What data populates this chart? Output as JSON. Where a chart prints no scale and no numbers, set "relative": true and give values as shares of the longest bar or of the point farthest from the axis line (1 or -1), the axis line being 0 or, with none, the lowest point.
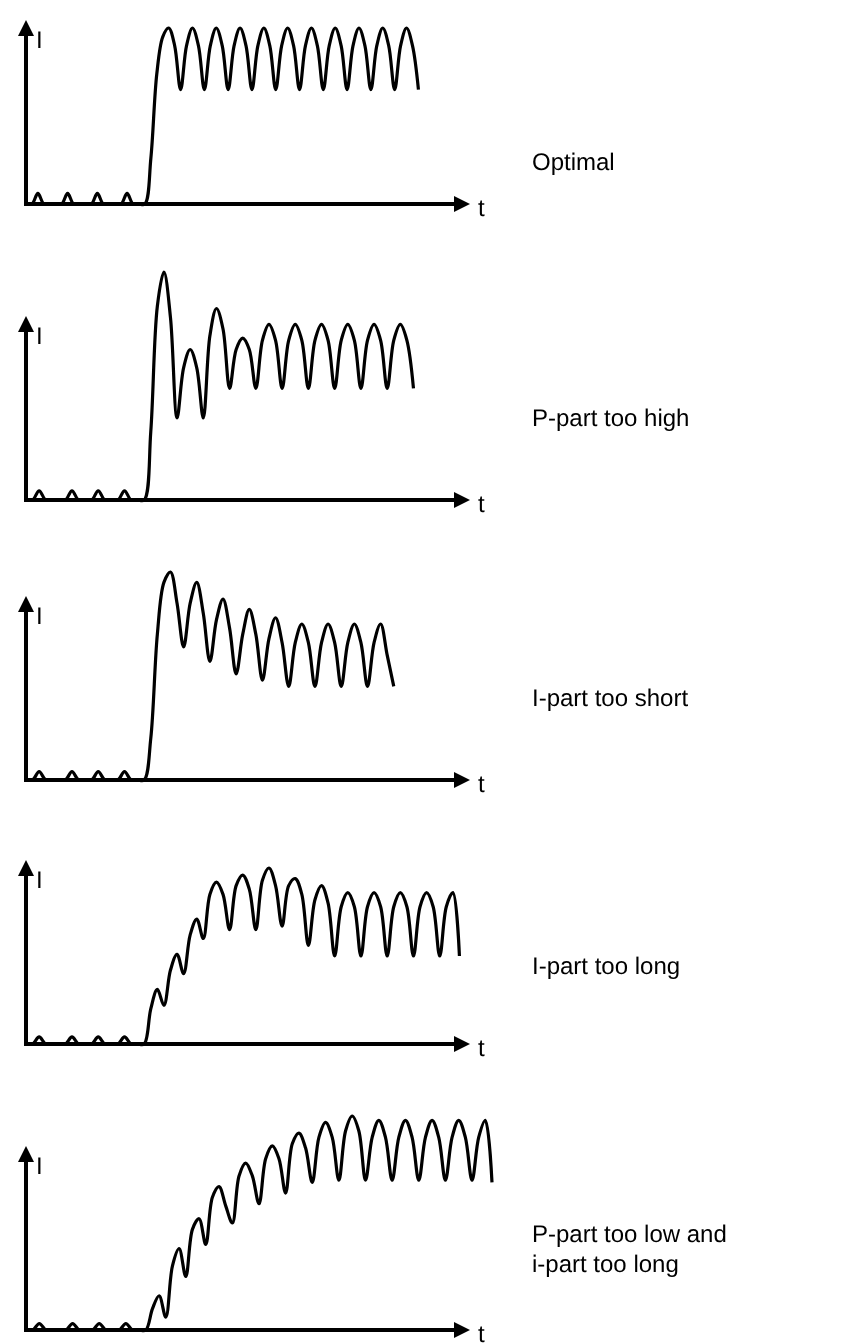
{
  "chart_data": [
    {
      "type": "line",
      "annotations": [
        "Optimal"
      ],
      "xlabel": "t",
      "ylabel": "I",
      "relative": true,
      "categories": [
        null,
        null,
        null,
        null,
        null,
        null,
        null,
        null,
        null,
        null,
        null,
        null,
        null,
        null,
        null,
        null,
        null,
        null,
        null,
        null,
        null,
        null,
        null,
        null,
        null,
        null,
        null,
        null,
        null,
        null,
        null,
        null,
        null,
        null,
        null,
        null,
        null,
        null,
        null,
        null,
        null,
        null,
        null,
        null,
        null,
        null,
        null,
        null,
        null,
        null,
        null,
        null,
        null,
        null,
        null,
        null,
        null,
        null,
        null,
        null,
        null,
        null,
        null,
        null,
        null,
        null,
        null,
        null,
        null,
        null,
        null,
        null,
        null,
        null,
        null
      ],
      "series": [
        {
          "color": "#000000",
          "values": [
            0,
            0,
            0.06,
            0,
            0,
            0,
            0,
            0.06,
            0,
            0,
            0,
            0,
            0.06,
            0,
            0,
            0,
            0,
            0.06,
            0,
            0,
            0,
            0.26,
            0.74,
            0.95,
            1,
            0.9,
            0.65,
            0.9,
            1,
            0.9,
            0.65,
            0.9,
            1,
            0.9,
            0.65,
            0.9,
            1,
            0.9,
            0.65,
            0.9,
            1,
            0.9,
            0.65,
            0.9,
            1,
            0.9,
            0.65,
            0.9,
            1,
            0.9,
            0.65,
            0.9,
            1,
            0.9,
            0.65,
            0.9,
            1,
            0.9,
            0.65,
            0.9,
            1,
            0.9,
            0.65,
            0.9,
            1,
            0.9,
            0.65,
            null,
            null,
            null,
            null,
            null,
            null,
            null,
            null
          ]
        }
      ]
    },
    {
      "type": "line",
      "annotations": [
        "P-part too high"
      ],
      "xlabel": "t",
      "ylabel": "I",
      "relative": true,
      "categories": [
        null,
        null,
        null,
        null,
        null,
        null,
        null,
        null,
        null,
        null,
        null,
        null,
        null,
        null,
        null,
        null,
        null,
        null,
        null,
        null,
        null,
        null,
        null,
        null,
        null,
        null,
        null,
        null,
        null,
        null,
        null,
        null,
        null,
        null,
        null,
        null,
        null,
        null,
        null,
        null,
        null,
        null,
        null,
        null,
        null,
        null,
        null,
        null,
        null,
        null,
        null,
        null,
        null,
        null,
        null,
        null,
        null,
        null,
        null,
        null,
        null,
        null,
        null,
        null,
        null,
        null,
        null,
        null
      ],
      "series": [
        {
          "color": "#000000",
          "values": [
            0,
            0,
            0.04,
            0,
            0,
            0,
            0,
            0.04,
            0,
            0,
            0,
            0.04,
            0,
            0,
            0,
            0.04,
            0,
            0,
            0,
            0.3,
            0.85,
            1,
            0.8,
            0.36,
            0.58,
            0.66,
            0.58,
            0.36,
            0.72,
            0.84,
            0.75,
            0.49,
            0.66,
            0.71,
            0.66,
            0.49,
            0.7,
            0.77,
            0.7,
            0.49,
            0.7,
            0.77,
            0.7,
            0.49,
            0.7,
            0.77,
            0.7,
            0.49,
            0.7,
            0.77,
            0.7,
            0.49,
            0.7,
            0.77,
            0.7,
            0.49,
            0.7,
            0.77,
            0.7,
            0.49,
            null,
            null,
            null,
            null,
            null,
            null,
            null,
            null
          ]
        }
      ]
    },
    {
      "type": "line",
      "annotations": [
        "I-part too short"
      ],
      "xlabel": "t",
      "ylabel": "I",
      "relative": true,
      "categories": [
        null,
        null,
        null,
        null,
        null,
        null,
        null,
        null,
        null,
        null,
        null,
        null,
        null,
        null,
        null,
        null,
        null,
        null,
        null,
        null,
        null,
        null,
        null,
        null,
        null,
        null,
        null,
        null,
        null,
        null,
        null,
        null,
        null,
        null,
        null,
        null,
        null,
        null,
        null,
        null,
        null,
        null,
        null,
        null,
        null,
        null,
        null,
        null,
        null,
        null,
        null,
        null,
        null,
        null,
        null,
        null,
        null,
        null,
        null,
        null,
        null,
        null,
        null,
        null,
        null,
        null,
        null,
        null
      ],
      "series": [
        {
          "color": "#000000",
          "values": [
            0,
            0,
            0.04,
            0,
            0,
            0,
            0,
            0.04,
            0,
            0,
            0,
            0.04,
            0,
            0,
            0,
            0.04,
            0,
            0,
            0,
            0.2,
            0.7,
            0.95,
            1,
            0.85,
            0.64,
            0.85,
            0.95,
            0.8,
            0.57,
            0.77,
            0.87,
            0.73,
            0.51,
            0.7,
            0.82,
            0.7,
            0.48,
            0.68,
            0.78,
            0.66,
            0.45,
            0.66,
            0.75,
            0.66,
            0.45,
            0.66,
            0.75,
            0.66,
            0.45,
            0.66,
            0.75,
            0.66,
            0.45,
            0.66,
            0.75,
            0.6,
            0.45,
            null,
            null,
            null,
            null,
            null,
            null,
            null,
            null,
            null,
            null,
            null
          ]
        }
      ]
    },
    {
      "type": "line",
      "annotations": [
        "I-part too long"
      ],
      "xlabel": "t",
      "ylabel": "I",
      "relative": true,
      "categories": [
        null,
        null,
        null,
        null,
        null,
        null,
        null,
        null,
        null,
        null,
        null,
        null,
        null,
        null,
        null,
        null,
        null,
        null,
        null,
        null,
        null,
        null,
        null,
        null,
        null,
        null,
        null,
        null,
        null,
        null,
        null,
        null,
        null,
        null,
        null,
        null,
        null,
        null,
        null,
        null,
        null,
        null,
        null,
        null,
        null,
        null,
        null,
        null,
        null,
        null,
        null,
        null,
        null,
        null,
        null,
        null,
        null,
        null,
        null,
        null,
        null,
        null,
        null,
        null,
        null,
        null,
        null,
        null
      ],
      "series": [
        {
          "color": "#000000",
          "values": [
            0,
            0,
            0.04,
            0,
            0,
            0,
            0,
            0.04,
            0,
            0,
            0,
            0.04,
            0,
            0,
            0,
            0.04,
            0,
            0,
            0,
            0.2,
            0.31,
            0.22,
            0.42,
            0.51,
            0.4,
            0.62,
            0.71,
            0.6,
            0.85,
            0.92,
            0.85,
            0.65,
            0.9,
            0.96,
            0.88,
            0.65,
            0.93,
            1,
            0.9,
            0.67,
            0.9,
            0.94,
            0.85,
            0.56,
            0.82,
            0.9,
            0.8,
            0.5,
            0.78,
            0.86,
            0.78,
            0.5,
            0.78,
            0.86,
            0.78,
            0.5,
            0.78,
            0.86,
            0.78,
            0.5,
            0.78,
            0.86,
            0.78,
            0.5,
            0.78,
            0.86,
            0.5,
            null
          ]
        }
      ]
    },
    {
      "type": "line",
      "annotations": [
        "P-part too low and i-part too long"
      ],
      "xlabel": "t",
      "ylabel": "I",
      "relative": true,
      "categories": [
        null,
        null,
        null,
        null,
        null,
        null,
        null,
        null,
        null,
        null,
        null,
        null,
        null,
        null,
        null,
        null,
        null,
        null,
        null,
        null,
        null,
        null,
        null,
        null,
        null,
        null,
        null,
        null,
        null,
        null,
        null,
        null,
        null,
        null,
        null,
        null,
        null,
        null,
        null,
        null,
        null,
        null,
        null,
        null,
        null,
        null,
        null,
        null,
        null,
        null,
        null,
        null,
        null,
        null,
        null,
        null,
        null,
        null,
        null,
        null,
        null,
        null,
        null,
        null,
        null,
        null,
        null,
        null,
        null,
        null,
        null
      ],
      "series": [
        {
          "color": "#000000",
          "values": [
            0,
            0,
            0.03,
            0,
            0,
            0,
            0,
            0.03,
            0,
            0,
            0,
            0.03,
            0,
            0,
            0,
            0.03,
            0,
            0,
            0,
            0.1,
            0.16,
            0.06,
            0.3,
            0.38,
            0.25,
            0.47,
            0.52,
            0.4,
            0.62,
            0.67,
            0.58,
            0.5,
            0.72,
            0.78,
            0.72,
            0.59,
            0.8,
            0.86,
            0.8,
            0.64,
            0.87,
            0.92,
            0.85,
            0.69,
            0.9,
            0.97,
            0.9,
            0.7,
            0.93,
            1,
            0.93,
            0.7,
            0.9,
            0.98,
            0.9,
            0.7,
            0.9,
            0.98,
            0.9,
            0.7,
            0.9,
            0.98,
            0.9,
            0.7,
            0.9,
            0.98,
            0.9,
            0.7,
            0.9,
            0.98,
            0.69
          ]
        }
      ]
    }
  ]
}
